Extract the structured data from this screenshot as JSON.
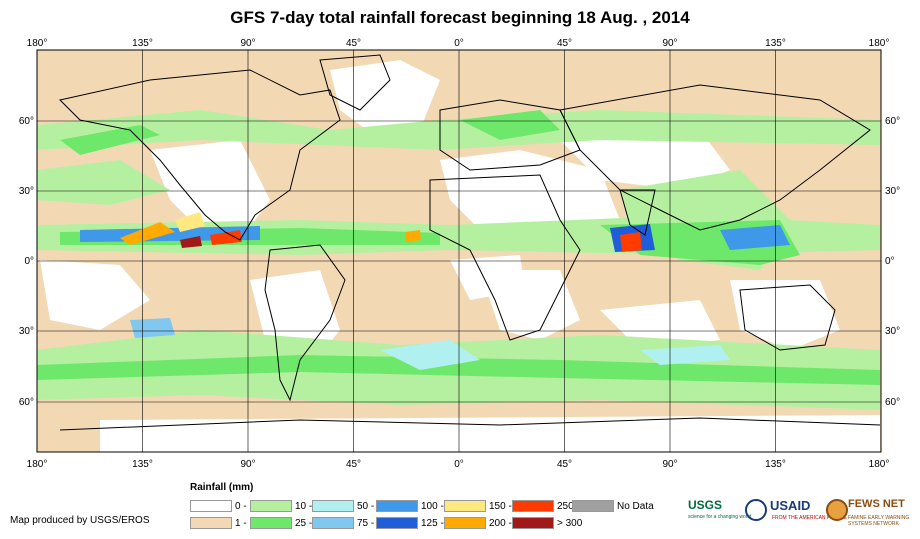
{
  "title": "GFS 7-day total rainfall forecast beginning 18 Aug. , 2014",
  "lon_ticks_top": [
    "180°",
    "135°",
    "90°",
    "45°",
    "0°",
    "45°",
    "90°",
    "135°",
    "180°"
  ],
  "lon_ticks_bottom": [
    "180°",
    "135°",
    "90°",
    "45°",
    "0°",
    "45°",
    "90°",
    "135°",
    "180°"
  ],
  "lat_ticks_left": [
    "60°",
    "30°",
    "0°",
    "30°",
    "60°"
  ],
  "lat_ticks_right": [
    "60°",
    "30°",
    "0°",
    "30°",
    "60°"
  ],
  "legend": {
    "title": "Rainfall (mm)",
    "items": [
      {
        "label": "0 - 1",
        "color": "#ffffff"
      },
      {
        "label": "1 - 10",
        "color": "#f2d9b4"
      },
      {
        "label": "10 - 25",
        "color": "#b5f0a0"
      },
      {
        "label": "25 - 50",
        "color": "#6ee86a"
      },
      {
        "label": "50 - 75",
        "color": "#b0f0f0"
      },
      {
        "label": "75 - 100",
        "color": "#80c8f0"
      },
      {
        "label": "100 - 125",
        "color": "#4098e8"
      },
      {
        "label": "125 - 150",
        "color": "#1f5ed8"
      },
      {
        "label": "150 - 200",
        "color": "#ffe880"
      },
      {
        "label": "200 - 250",
        "color": "#ffaa00"
      },
      {
        "label": "250 - 300",
        "color": "#ff3c00"
      },
      {
        "label": "> 300",
        "color": "#a01818"
      },
      {
        "label": "No Data",
        "color": "#a0a0a0"
      }
    ]
  },
  "credit": "Map produced by USGS/EROS",
  "logos": {
    "usgs": "USGS",
    "usgs_tagline": "science for a changing world",
    "usaid": "USAID",
    "usaid_tagline": "FROM THE AMERICAN PEOPLE",
    "fews": "FEWS NET",
    "fews_tagline": "FAMINE EARLY WARNING SYSTEMS NETWORK"
  }
}
